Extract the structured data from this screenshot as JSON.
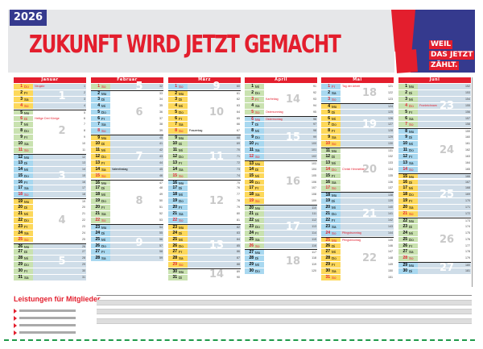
{
  "header": {
    "year": "2026",
    "title": "ZUKUNFT WIRD JETZT GEMACHT",
    "slogan": [
      "WEIL",
      "DAS JETZT",
      "ZÄHLT."
    ]
  },
  "colors": {
    "red": "#e31e2d",
    "navy": "#353a8e",
    "week_odd_bg": "#cfdde8",
    "stripe": [
      "#a8d8f0",
      "#fdd85a",
      "#c9e2b0"
    ]
  },
  "months": [
    {
      "name": "Januar",
      "first_kw": 1,
      "doy_first": 1,
      "days": [
        "Do",
        "Fr",
        "Sa",
        "So",
        "Mo",
        "Di",
        "Mi",
        "Do",
        "Fr",
        "Sa",
        "So",
        "Mo",
        "Di",
        "Mi",
        "Do",
        "Fr",
        "Sa",
        "So",
        "Mo",
        "Di",
        "Mi",
        "Do",
        "Fr",
        "Sa",
        "So",
        "Mo",
        "Di",
        "Mi",
        "Do",
        "Fr",
        "Sa"
      ],
      "notes": {
        "1": "Neujahr",
        "6": "Heilige Drei Könige"
      },
      "holidays": [
        1,
        6
      ]
    },
    {
      "name": "Februar",
      "first_kw": 5,
      "doy_first": 32,
      "days": [
        "So",
        "Mo",
        "Di",
        "Mi",
        "Do",
        "Fr",
        "Sa",
        "So",
        "Mo",
        "Di",
        "Mi",
        "Do",
        "Fr",
        "Sa",
        "So",
        "Mo",
        "Di",
        "Mi",
        "Do",
        "Fr",
        "Sa",
        "So",
        "Mo",
        "Di",
        "Mi",
        "Do",
        "Fr",
        "Sa"
      ],
      "notes": {
        "14": "Valentinstag"
      },
      "holidays": []
    },
    {
      "name": "März",
      "first_kw": 9,
      "doy_first": 60,
      "days": [
        "So",
        "Mo",
        "Di",
        "Mi",
        "Do",
        "Fr",
        "Sa",
        "So",
        "Mo",
        "Di",
        "Mi",
        "Do",
        "Fr",
        "Sa",
        "So",
        "Mo",
        "Di",
        "Mi",
        "Do",
        "Fr",
        "Sa",
        "So",
        "Mo",
        "Di",
        "Mi",
        "Do",
        "Fr",
        "Sa",
        "So",
        "Mo",
        "Di"
      ],
      "notes": {
        "8": "Frauentag"
      },
      "holidays": []
    },
    {
      "name": "April",
      "first_kw": 14,
      "doy_first": 91,
      "days": [
        "Mi",
        "Do",
        "Fr",
        "Sa",
        "So",
        "Mo",
        "Di",
        "Mi",
        "Do",
        "Fr",
        "Sa",
        "So",
        "Mo",
        "Di",
        "Mi",
        "Do",
        "Fr",
        "Sa",
        "So",
        "Mo",
        "Di",
        "Mi",
        "Do",
        "Fr",
        "Sa",
        "So",
        "Mo",
        "Di",
        "Mi",
        "Do"
      ],
      "notes": {
        "3": "Karfreitag",
        "5": "Ostersonntag",
        "6": "Ostermontag"
      },
      "holidays": [
        3,
        5,
        6
      ]
    },
    {
      "name": "Mai",
      "first_kw": 18,
      "doy_first": 121,
      "days": [
        "Fr",
        "Sa",
        "So",
        "Mo",
        "Di",
        "Mi",
        "Do",
        "Fr",
        "Sa",
        "So",
        "Mo",
        "Di",
        "Mi",
        "Do",
        "Fr",
        "Sa",
        "So",
        "Mo",
        "Di",
        "Mi",
        "Do",
        "Fr",
        "Sa",
        "So",
        "Mo",
        "Di",
        "Mi",
        "Do",
        "Fr",
        "Sa",
        "So"
      ],
      "notes": {
        "1": "Tag der Arbeit",
        "14": "Christi Himmelfahrt",
        "24": "Pfingstsonntag",
        "25": "Pfingstmontag"
      },
      "holidays": [
        1,
        14,
        24,
        25
      ]
    },
    {
      "name": "Juni",
      "first_kw": 23,
      "doy_first": 152,
      "days": [
        "Mo",
        "Di",
        "Mi",
        "Do",
        "Fr",
        "Sa",
        "So",
        "Mo",
        "Di",
        "Mi",
        "Do",
        "Fr",
        "Sa",
        "So",
        "Mo",
        "Di",
        "Mi",
        "Do",
        "Fr",
        "Sa",
        "So",
        "Mo",
        "Di",
        "Mi",
        "Do",
        "Fr",
        "Sa",
        "So",
        "Mo",
        "Di"
      ],
      "notes": {
        "4": "Fronleichnam"
      },
      "holidays": [
        4
      ]
    }
  ],
  "benefits": {
    "title": "Leistungen für Mitglieder"
  }
}
